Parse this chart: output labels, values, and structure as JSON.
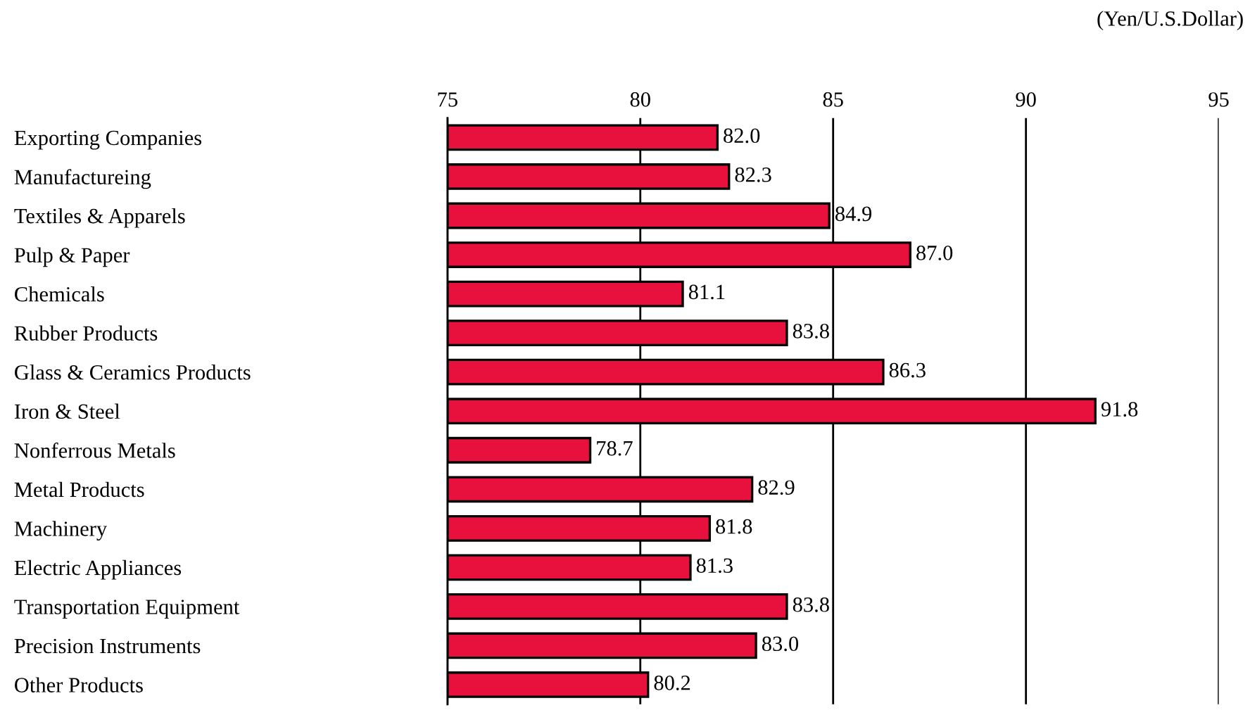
{
  "chart_data": {
    "type": "bar",
    "orientation": "horizontal",
    "x2label": "(Yen/U.S.Dollar)",
    "categories": [
      "Exporting Companies",
      "Manufactureing",
      "Textiles & Apparels",
      "Pulp & Paper",
      "Chemicals",
      "Rubber Products",
      "Glass & Ceramics Products",
      "Iron & Steel",
      "Nonferrous Metals",
      "Metal Products",
      "Machinery",
      "Electric Appliances",
      "Transportation Equipment",
      "Precision Instruments",
      "Other Products"
    ],
    "series": [
      {
        "axis": "x2",
        "color": "#e8103c",
        "base": [
          75,
          75,
          75,
          75,
          75,
          75,
          75,
          75,
          75,
          75,
          75,
          75,
          75,
          75,
          75
        ],
        "values": [
          7.0,
          7.3,
          9.9,
          12.0,
          6.1,
          8.8,
          11.3,
          16.8,
          3.7,
          7.9,
          6.8,
          6.3,
          8.8,
          8.0,
          5.2
        ],
        "value_labels": [
          "82.0",
          "82.3",
          "84.9",
          "87.0",
          "81.1",
          "83.8",
          "86.3",
          "91.8",
          "78.7",
          "82.9",
          "81.8",
          "81.3",
          "83.8",
          "83.0",
          "80.2"
        ]
      }
    ],
    "x2lim": [
      75,
      95
    ],
    "x2ticks": [
      75,
      80,
      85,
      90,
      95
    ],
    "grid": "x"
  }
}
